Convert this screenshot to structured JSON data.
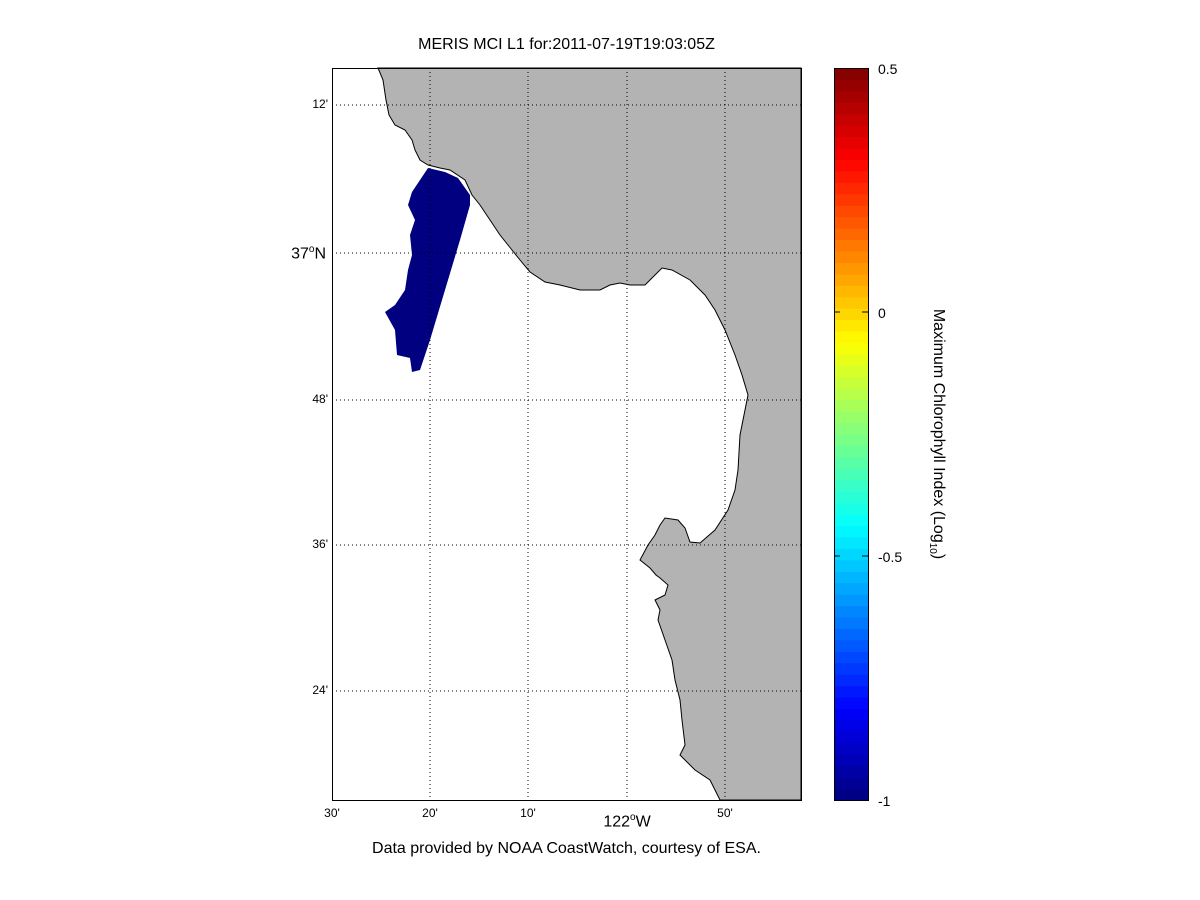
{
  "title": "MERIS MCI L1 for:2011-07-19T19:03:05Z",
  "credit": "Data provided by NOAA CoastWatch, courtesy of ESA.",
  "map": {
    "lat_labels": [
      {
        "text": "12'",
        "major": false
      },
      {
        "text": "37",
        "sup": "o",
        "suffix": "N",
        "major": true
      },
      {
        "text": "48'",
        "major": false
      },
      {
        "text": "36'",
        "major": false
      },
      {
        "text": "24'",
        "major": false
      }
    ],
    "lon_labels": [
      {
        "text": "30'"
      },
      {
        "text": "20'"
      },
      {
        "text": "10'"
      },
      {
        "text": ""
      },
      {
        "text": "50'"
      }
    ],
    "lon_major": {
      "text": "122",
      "sup": "o",
      "suffix": "W"
    },
    "land_color": "#b3b3b3",
    "data_color": "#000080"
  },
  "colorbar": {
    "colormap": "jet",
    "range": [
      -1,
      0.5
    ],
    "ticks": [
      "0.5",
      "0",
      "-0.5",
      "-1"
    ],
    "label": "Maximum Chlorophyll Index (Log",
    "label_sub": "10",
    "label_end": ")"
  }
}
